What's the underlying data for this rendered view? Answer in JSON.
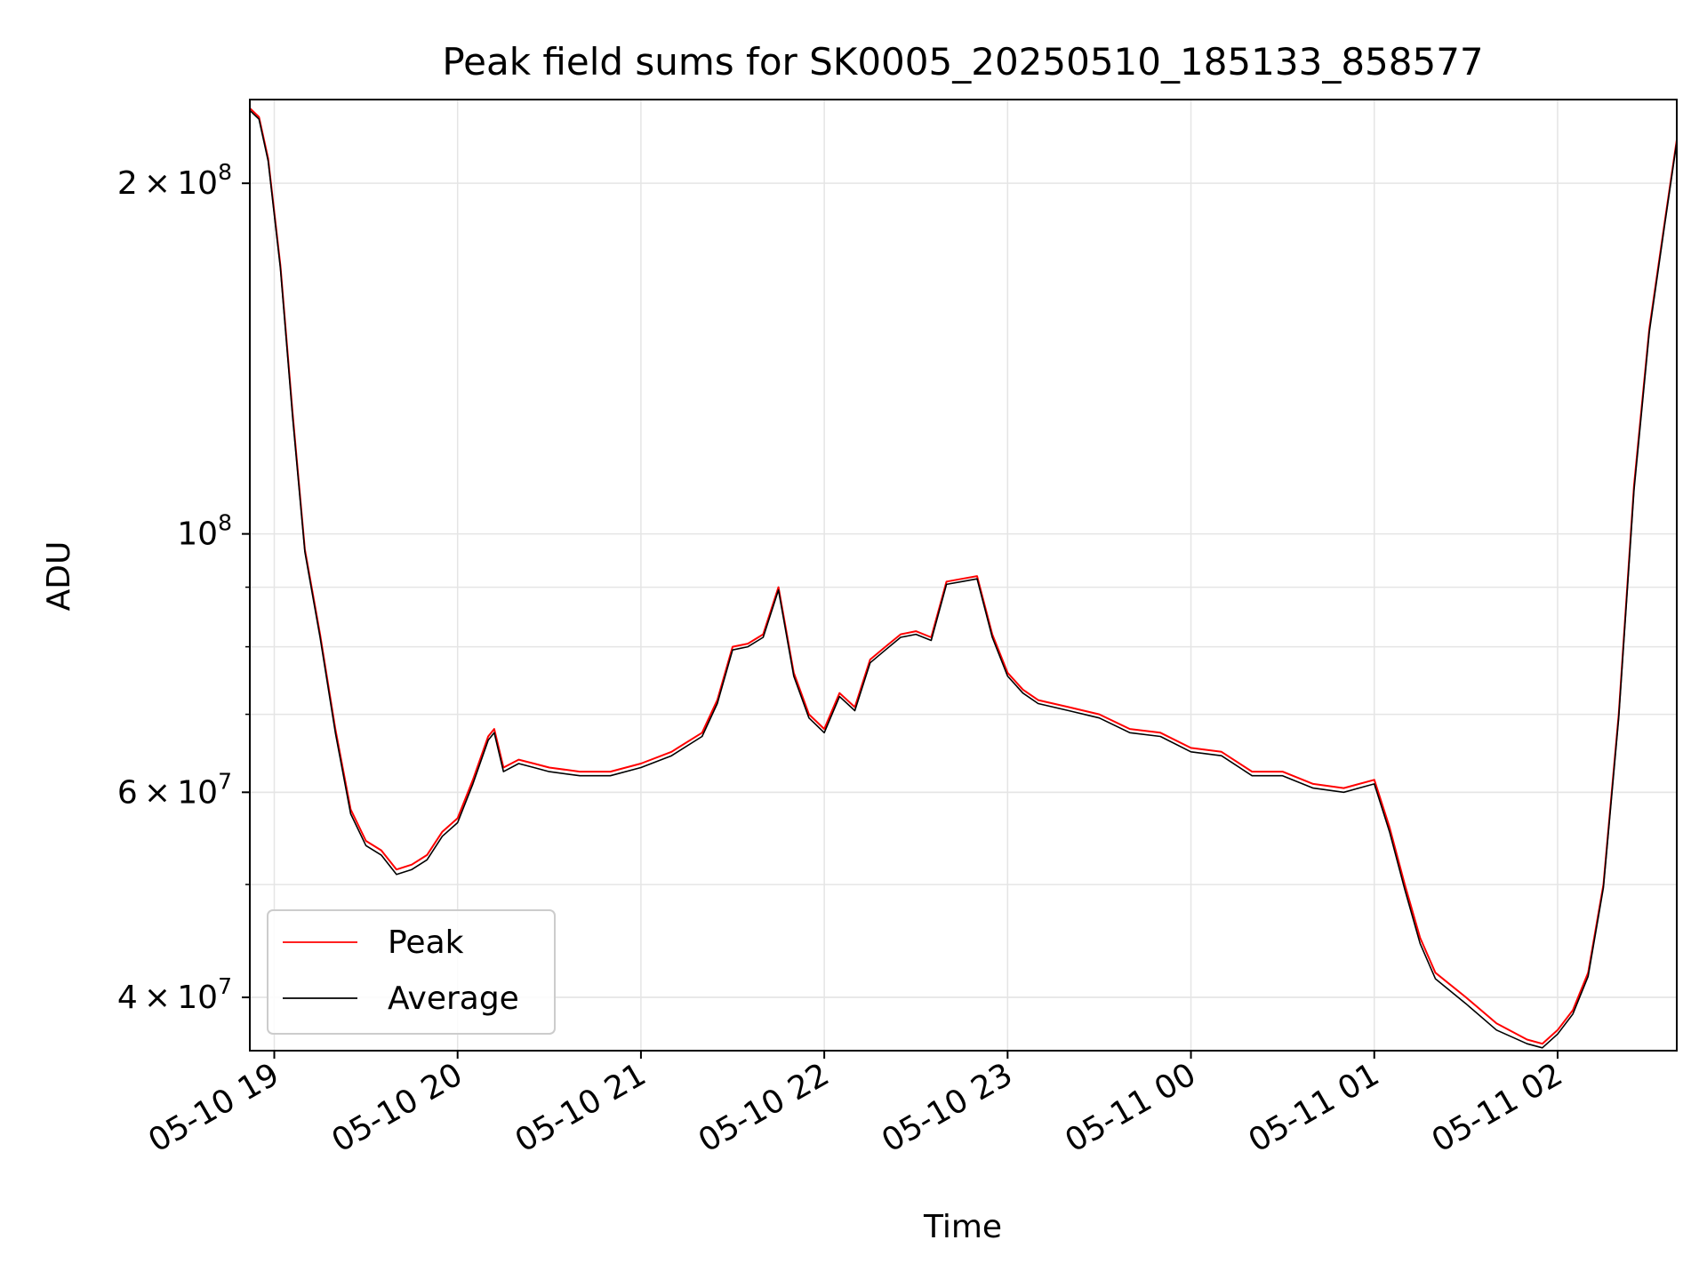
{
  "chart_data": {
    "type": "line",
    "title": "Peak field sums for SK0005_20250510_185133_858577",
    "xlabel": "Time",
    "ylabel": "ADU",
    "yscale": "log",
    "ylim": [
      36000000,
      236000000
    ],
    "xlim": [
      "05-10 18:52",
      "05-11 02:39"
    ],
    "grid": true,
    "legend": {
      "position": "lower-left",
      "entries": [
        "Peak",
        "Average"
      ]
    },
    "colors": {
      "Peak": "#ff0000",
      "Average": "#000000",
      "grid": "#e5e5e5",
      "axis": "#000000"
    },
    "x_ticks": [
      "05-10 19",
      "05-10 20",
      "05-10 21",
      "05-10 22",
      "05-10 23",
      "05-11 00",
      "05-11 01",
      "05-11 02"
    ],
    "y_ticks": [
      {
        "value": 40000000,
        "mantissa": "4",
        "exponent": "7"
      },
      {
        "value": 60000000,
        "mantissa": "6",
        "exponent": "7"
      },
      {
        "value": 100000000,
        "mantissa": "",
        "exponent": "8"
      },
      {
        "value": 200000000,
        "mantissa": "2",
        "exponent": "8"
      }
    ],
    "series": [
      {
        "name": "Peak",
        "x": [
          "05-10 18:52",
          "05-10 18:55",
          "05-10 18:58",
          "05-10 19:02",
          "05-10 19:06",
          "05-10 19:10",
          "05-10 19:15",
          "05-10 19:20",
          "05-10 19:25",
          "05-10 19:30",
          "05-10 19:35",
          "05-10 19:40",
          "05-10 19:45",
          "05-10 19:50",
          "05-10 19:55",
          "05-10 20:00",
          "05-10 20:05",
          "05-10 20:10",
          "05-10 20:12",
          "05-10 20:15",
          "05-10 20:20",
          "05-10 20:25",
          "05-10 20:30",
          "05-10 20:40",
          "05-10 20:50",
          "05-10 21:00",
          "05-10 21:10",
          "05-10 21:20",
          "05-10 21:25",
          "05-10 21:30",
          "05-10 21:35",
          "05-10 21:40",
          "05-10 21:45",
          "05-10 21:50",
          "05-10 21:55",
          "05-10 22:00",
          "05-10 22:05",
          "05-10 22:10",
          "05-10 22:15",
          "05-10 22:20",
          "05-10 22:25",
          "05-10 22:30",
          "05-10 22:35",
          "05-10 22:40",
          "05-10 22:45",
          "05-10 22:50",
          "05-10 22:55",
          "05-10 23:00",
          "05-10 23:05",
          "05-10 23:10",
          "05-10 23:20",
          "05-10 23:30",
          "05-10 23:40",
          "05-10 23:50",
          "05-11 00:00",
          "05-11 00:10",
          "05-11 00:20",
          "05-11 00:30",
          "05-11 00:40",
          "05-11 00:50",
          "05-11 01:00",
          "05-11 01:05",
          "05-11 01:10",
          "05-11 01:15",
          "05-11 01:20",
          "05-11 01:30",
          "05-11 01:40",
          "05-11 01:50",
          "05-11 01:55",
          "05-11 02:00",
          "05-11 02:05",
          "05-11 02:10",
          "05-11 02:15",
          "05-11 02:20",
          "05-11 02:25",
          "05-11 02:30",
          "05-11 02:35",
          "05-11 02:39"
        ],
        "values": [
          232000000,
          228000000,
          210000000,
          170000000,
          127000000,
          97000000,
          82000000,
          68000000,
          58000000,
          54500000,
          53500000,
          51500000,
          52000000,
          53000000,
          55500000,
          57000000,
          61500000,
          67000000,
          68000000,
          63000000,
          64000000,
          63500000,
          63000000,
          62500000,
          62500000,
          63500000,
          65000000,
          67500000,
          72000000,
          80000000,
          80500000,
          82000000,
          90000000,
          76000000,
          70000000,
          68000000,
          73000000,
          71000000,
          78000000,
          80000000,
          82000000,
          82500000,
          81500000,
          91000000,
          91500000,
          92000000,
          82000000,
          76000000,
          73500000,
          72000000,
          71000000,
          70000000,
          68000000,
          67500000,
          65500000,
          65000000,
          62500000,
          62500000,
          61000000,
          60500000,
          61500000,
          56000000,
          50000000,
          45000000,
          42000000,
          40000000,
          38000000,
          36800000,
          36500000,
          37500000,
          39000000,
          42000000,
          50000000,
          70000000,
          110000000,
          150000000,
          185000000,
          218000000
        ]
      },
      {
        "name": "Average",
        "x": [
          "05-10 18:52",
          "05-10 18:55",
          "05-10 18:58",
          "05-10 19:02",
          "05-10 19:06",
          "05-10 19:10",
          "05-10 19:15",
          "05-10 19:20",
          "05-10 19:25",
          "05-10 19:30",
          "05-10 19:35",
          "05-10 19:40",
          "05-10 19:45",
          "05-10 19:50",
          "05-10 19:55",
          "05-10 20:00",
          "05-10 20:05",
          "05-10 20:10",
          "05-10 20:12",
          "05-10 20:15",
          "05-10 20:20",
          "05-10 20:25",
          "05-10 20:30",
          "05-10 20:40",
          "05-10 20:50",
          "05-10 21:00",
          "05-10 21:10",
          "05-10 21:20",
          "05-10 21:25",
          "05-10 21:30",
          "05-10 21:35",
          "05-10 21:40",
          "05-10 21:45",
          "05-10 21:50",
          "05-10 21:55",
          "05-10 22:00",
          "05-10 22:05",
          "05-10 22:10",
          "05-10 22:15",
          "05-10 22:20",
          "05-10 22:25",
          "05-10 22:30",
          "05-10 22:35",
          "05-10 22:40",
          "05-10 22:45",
          "05-10 22:50",
          "05-10 22:55",
          "05-10 23:00",
          "05-10 23:05",
          "05-10 23:10",
          "05-10 23:20",
          "05-10 23:30",
          "05-10 23:40",
          "05-10 23:50",
          "05-11 00:00",
          "05-11 00:10",
          "05-11 00:20",
          "05-11 00:30",
          "05-11 00:40",
          "05-11 00:50",
          "05-11 01:00",
          "05-11 01:05",
          "05-11 01:10",
          "05-11 01:15",
          "05-11 01:20",
          "05-11 01:30",
          "05-11 01:40",
          "05-11 01:50",
          "05-11 01:55",
          "05-11 02:00",
          "05-11 02:05",
          "05-11 02:10",
          "05-11 02:15",
          "05-11 02:20",
          "05-11 02:25",
          "05-11 02:30",
          "05-11 02:35",
          "05-11 02:39"
        ],
        "values": [
          231000000,
          227000000,
          209000000,
          169000000,
          126000000,
          96500000,
          81500000,
          67500000,
          57500000,
          54000000,
          53000000,
          51000000,
          51500000,
          52500000,
          55000000,
          56500000,
          61000000,
          66500000,
          67500000,
          62500000,
          63500000,
          63000000,
          62500000,
          62000000,
          62000000,
          63000000,
          64500000,
          67000000,
          71500000,
          79500000,
          80000000,
          81500000,
          89500000,
          75500000,
          69500000,
          67500000,
          72500000,
          70500000,
          77500000,
          79500000,
          81500000,
          82000000,
          81000000,
          90500000,
          91000000,
          91500000,
          81500000,
          75500000,
          73000000,
          71500000,
          70500000,
          69500000,
          67500000,
          67000000,
          65000000,
          64500000,
          62000000,
          62000000,
          60500000,
          60000000,
          61000000,
          55500000,
          49500000,
          44500000,
          41500000,
          39500000,
          37500000,
          36500000,
          36200000,
          37200000,
          38700000,
          41700000,
          49700000,
          69500000,
          109000000,
          149000000,
          184000000,
          217000000
        ]
      }
    ]
  }
}
